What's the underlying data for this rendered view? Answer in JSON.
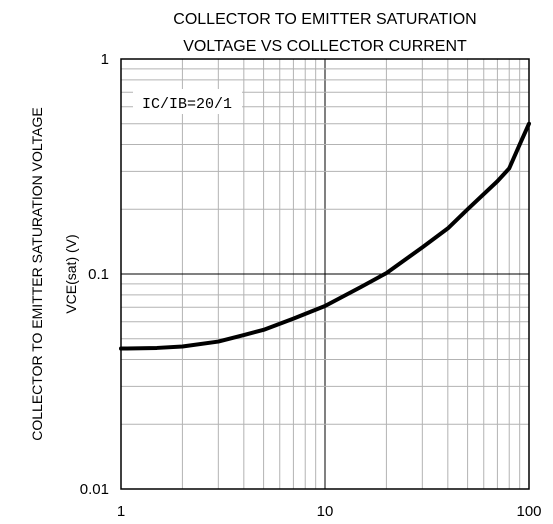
{
  "chart_data": {
    "type": "line",
    "title_lines": [
      "COLLECTOR TO EMITTER SATURATION",
      "VOLTAGE VS COLLECTOR CURRENT"
    ],
    "xlabel": "",
    "ylabel_lines": [
      "COLLECTOR TO EMITTER SATURATION VOLTAGE",
      "VCE(sat) (V)"
    ],
    "annotation": "IC/IB=20/1",
    "x_scale": "log",
    "y_scale": "log",
    "xlim": [
      1,
      100
    ],
    "ylim": [
      0.01,
      1
    ],
    "x_ticks": [
      "1",
      "10",
      "100"
    ],
    "y_ticks": [
      "0.01",
      "0.1",
      "1"
    ],
    "grid": true,
    "series": [
      {
        "x": [
          1,
          1.5,
          2,
          3,
          4,
          5,
          7,
          10,
          15,
          20,
          30,
          40,
          50,
          70,
          80,
          90,
          100
        ],
        "y": [
          0.045,
          0.0453,
          0.046,
          0.0485,
          0.052,
          0.055,
          0.062,
          0.071,
          0.087,
          0.101,
          0.133,
          0.163,
          0.2,
          0.27,
          0.31,
          0.4,
          0.5
        ]
      }
    ]
  }
}
